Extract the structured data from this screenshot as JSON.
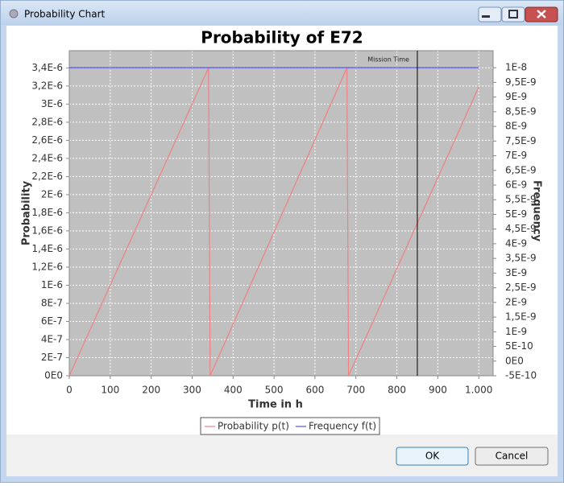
{
  "window": {
    "title": "Probability Chart",
    "buttons": [
      "OK",
      "Cancel"
    ]
  },
  "chart_data": {
    "type": "line",
    "title": "Probability of E72",
    "xlabel": "Time in h",
    "ylabel": "Probability",
    "y2label": "Frequency",
    "background": "#c0c0c0",
    "grid": true,
    "xlim": [
      0,
      1035
    ],
    "xticks": [
      0,
      100,
      200,
      300,
      400,
      500,
      600,
      700,
      800,
      900,
      {
        "value": 1000,
        "label": "1.000"
      }
    ],
    "ylim": [
      0,
      3.59e-06
    ],
    "yticks": [
      {
        "value": 0,
        "label": "0E0"
      },
      {
        "value": 2e-07,
        "label": "2E-7"
      },
      {
        "value": 4e-07,
        "label": "4E-7"
      },
      {
        "value": 6e-07,
        "label": "6E-7"
      },
      {
        "value": 8e-07,
        "label": "8E-7"
      },
      {
        "value": 1e-06,
        "label": "1E-6"
      },
      {
        "value": 1.2e-06,
        "label": "1,2E-6"
      },
      {
        "value": 1.4e-06,
        "label": "1,4E-6"
      },
      {
        "value": 1.6e-06,
        "label": "1,6E-6"
      },
      {
        "value": 1.8e-06,
        "label": "1,8E-6"
      },
      {
        "value": 2e-06,
        "label": "2E-6"
      },
      {
        "value": 2.2e-06,
        "label": "2,2E-6"
      },
      {
        "value": 2.4e-06,
        "label": "2,4E-6"
      },
      {
        "value": 2.6e-06,
        "label": "2,6E-6"
      },
      {
        "value": 2.8e-06,
        "label": "2,8E-6"
      },
      {
        "value": 3e-06,
        "label": "3E-6"
      },
      {
        "value": 3.2e-06,
        "label": "3,2E-6"
      },
      {
        "value": 3.4e-06,
        "label": "3,4E-6"
      }
    ],
    "y2lim": [
      -5e-10,
      1.058e-08
    ],
    "y2ticks": [
      {
        "value": -5e-10,
        "label": "-5E-10"
      },
      {
        "value": 0,
        "label": "0E0"
      },
      {
        "value": 5e-10,
        "label": "5E-10"
      },
      {
        "value": 1e-09,
        "label": "1E-9"
      },
      {
        "value": 1.5e-09,
        "label": "1,5E-9"
      },
      {
        "value": 2e-09,
        "label": "2E-9"
      },
      {
        "value": 2.5e-09,
        "label": "2,5E-9"
      },
      {
        "value": 3e-09,
        "label": "3E-9"
      },
      {
        "value": 3.5e-09,
        "label": "3,5E-9"
      },
      {
        "value": 4e-09,
        "label": "4E-9"
      },
      {
        "value": 4.5e-09,
        "label": "4,5E-9"
      },
      {
        "value": 5e-09,
        "label": "5E-9"
      },
      {
        "value": 5.5e-09,
        "label": "5,5E-9"
      },
      {
        "value": 6e-09,
        "label": "6E-9"
      },
      {
        "value": 6.5e-09,
        "label": "6,5E-9"
      },
      {
        "value": 7e-09,
        "label": "7E-9"
      },
      {
        "value": 7.5e-09,
        "label": "7,5E-9"
      },
      {
        "value": 8e-09,
        "label": "8E-9"
      },
      {
        "value": 8.5e-09,
        "label": "8,5E-9"
      },
      {
        "value": 9e-09,
        "label": "9E-9"
      },
      {
        "value": 9.5e-09,
        "label": "9,5E-9"
      },
      {
        "value": 1e-08,
        "label": "1E-8"
      }
    ],
    "series": [
      {
        "name": "Probability p(t)",
        "color": "#f08080",
        "x": [
          0,
          340,
          344,
          678,
          682,
          1000
        ],
        "values": [
          0,
          3.4e-06,
          0,
          3.4e-06,
          0,
          3.19e-06
        ]
      },
      {
        "name": "Frequency f(t)",
        "color": "#5050e0",
        "axis": "y2",
        "x": [
          0,
          1000
        ],
        "values": [
          1e-08,
          1e-08
        ]
      }
    ],
    "markers": [
      {
        "label": "Mission Time",
        "x": 850,
        "color": "#000000"
      }
    ]
  }
}
